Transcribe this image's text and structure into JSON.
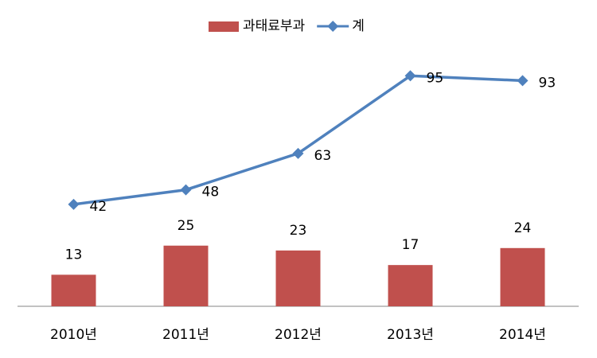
{
  "chart_data": {
    "type": "combo",
    "categories": [
      "2010년",
      "2011년",
      "2012년",
      "2013년",
      "2014년"
    ],
    "series": [
      {
        "name": "과태료부과",
        "type": "bar",
        "color": "#c0504d",
        "values": [
          13,
          25,
          23,
          17,
          24
        ]
      },
      {
        "name": "계",
        "type": "line",
        "color": "#4f81bd",
        "values": [
          42,
          48,
          63,
          95,
          93
        ]
      }
    ],
    "ylim": [
      0,
      100
    ],
    "legend": "top"
  }
}
